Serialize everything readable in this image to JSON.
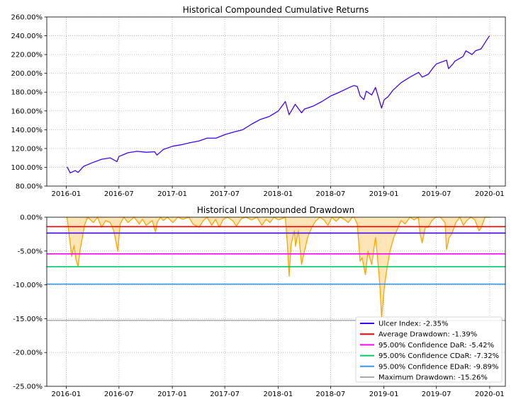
{
  "chart_data": [
    {
      "type": "line",
      "title": "Historical Compounded Cumulative Returns",
      "xlabel": "",
      "ylabel": "",
      "x_ticks": [
        "2016-01",
        "2016-07",
        "2017-01",
        "2017-07",
        "2018-01",
        "2018-07",
        "2019-01",
        "2019-07",
        "2020-01"
      ],
      "y_ticks": [
        "80.00%",
        "100.00%",
        "120.00%",
        "140.00%",
        "160.00%",
        "180.00%",
        "200.00%",
        "220.00%",
        "240.00%",
        "260.00%"
      ],
      "ylim": [
        80,
        260
      ],
      "xlim": [
        "2015-10-26",
        "2020-02-24"
      ],
      "grid": true,
      "series": [
        {
          "color": "#4400ff",
          "x": [
            "2016-01-04",
            "2016-01-15",
            "2016-02-01",
            "2016-02-11",
            "2016-03-01",
            "2016-04-01",
            "2016-05-02",
            "2016-06-01",
            "2016-06-24",
            "2016-07-01",
            "2016-08-01",
            "2016-09-01",
            "2016-10-03",
            "2016-11-01",
            "2016-11-09",
            "2016-12-01",
            "2017-01-03",
            "2017-02-01",
            "2017-03-01",
            "2017-04-03",
            "2017-05-01",
            "2017-06-01",
            "2017-07-03",
            "2017-08-01",
            "2017-09-01",
            "2017-10-02",
            "2017-11-01",
            "2017-12-01",
            "2018-01-02",
            "2018-01-26",
            "2018-02-08",
            "2018-03-01",
            "2018-03-23",
            "2018-04-02",
            "2018-05-01",
            "2018-06-01",
            "2018-07-02",
            "2018-08-01",
            "2018-09-04",
            "2018-09-20",
            "2018-10-01",
            "2018-10-11",
            "2018-10-24",
            "2018-11-01",
            "2018-11-20",
            "2018-12-03",
            "2018-12-24",
            "2019-01-02",
            "2019-01-15",
            "2019-02-01",
            "2019-03-01",
            "2019-04-01",
            "2019-05-01",
            "2019-05-13",
            "2019-06-03",
            "2019-06-20",
            "2019-07-01",
            "2019-08-05",
            "2019-08-12",
            "2019-08-27",
            "2019-09-03",
            "2019-10-01",
            "2019-10-11",
            "2019-11-01",
            "2019-11-13",
            "2019-12-02",
            "2019-12-31"
          ],
          "values": [
            100.5,
            94.0,
            96.5,
            94.5,
            101.0,
            105.0,
            108.5,
            110.0,
            106.0,
            111.5,
            115.5,
            117.0,
            116.0,
            116.5,
            113.0,
            119.0,
            122.5,
            124.0,
            126.0,
            128.0,
            131.0,
            131.0,
            135.0,
            137.5,
            140.0,
            146.0,
            151.0,
            154.0,
            160.0,
            170.0,
            156.0,
            167.0,
            158.0,
            162.0,
            165.0,
            170.0,
            176.0,
            180.0,
            185.0,
            187.0,
            186.0,
            176.0,
            172.0,
            181.0,
            177.0,
            185.0,
            163.0,
            172.0,
            175.0,
            182.0,
            190.0,
            196.0,
            201.0,
            196.0,
            199.0,
            206.0,
            210.0,
            214.0,
            205.0,
            210.0,
            213.0,
            218.0,
            224.0,
            220.0,
            224.0,
            226.0,
            240.0
          ]
        }
      ]
    },
    {
      "type": "area",
      "title": "Historical Uncompounded Drawdown",
      "xlabel": "",
      "ylabel": "",
      "x_ticks": [
        "2016-01",
        "2016-07",
        "2017-01",
        "2017-07",
        "2018-01",
        "2018-07",
        "2019-01",
        "2019-07",
        "2020-01"
      ],
      "y_ticks": [
        "0.00%",
        "-5.00%",
        "-10.00%",
        "-15.00%",
        "-20.00%",
        "-25.00%"
      ],
      "ylim": [
        -25,
        0
      ],
      "xlim": [
        "2015-10-26",
        "2020-02-24"
      ],
      "grid": true,
      "legend_placement": "lower-right",
      "series": [
        {
          "color": "#ffa500",
          "fill": "#ffe4b5",
          "x": [
            "2016-01-04",
            "2016-01-08",
            "2016-01-20",
            "2016-01-28",
            "2016-02-04",
            "2016-02-11",
            "2016-02-18",
            "2016-02-25",
            "2016-03-04",
            "2016-03-15",
            "2016-04-04",
            "2016-04-18",
            "2016-05-02",
            "2016-05-16",
            "2016-06-01",
            "2016-06-13",
            "2016-06-27",
            "2016-07-05",
            "2016-07-18",
            "2016-08-01",
            "2016-08-22",
            "2016-09-09",
            "2016-09-20",
            "2016-10-03",
            "2016-10-24",
            "2016-11-04",
            "2016-11-10",
            "2016-11-21",
            "2016-12-01",
            "2016-12-15",
            "2017-01-03",
            "2017-01-20",
            "2017-02-06",
            "2017-02-27",
            "2017-03-13",
            "2017-04-03",
            "2017-04-18",
            "2017-05-01",
            "2017-05-17",
            "2017-05-30",
            "2017-06-12",
            "2017-06-26",
            "2017-07-10",
            "2017-07-28",
            "2017-08-10",
            "2017-08-28",
            "2017-09-12",
            "2017-10-02",
            "2017-10-20",
            "2017-11-06",
            "2017-11-21",
            "2017-12-04",
            "2017-12-18",
            "2018-01-02",
            "2018-01-26",
            "2018-02-02",
            "2018-02-08",
            "2018-02-15",
            "2018-02-26",
            "2018-03-02",
            "2018-03-12",
            "2018-03-23",
            "2018-04-02",
            "2018-04-13",
            "2018-04-27",
            "2018-05-10",
            "2018-05-25",
            "2018-06-08",
            "2018-06-22",
            "2018-07-06",
            "2018-07-20",
            "2018-08-03",
            "2018-08-17",
            "2018-08-31",
            "2018-09-14",
            "2018-09-20",
            "2018-10-01",
            "2018-10-11",
            "2018-10-18",
            "2018-10-29",
            "2018-11-07",
            "2018-11-20",
            "2018-12-03",
            "2018-12-10",
            "2018-12-18",
            "2018-12-24",
            "2019-01-02",
            "2019-01-10",
            "2019-01-22",
            "2019-02-04",
            "2019-02-19",
            "2019-03-01",
            "2019-03-15",
            "2019-04-01",
            "2019-04-15",
            "2019-04-30",
            "2019-05-06",
            "2019-05-13",
            "2019-05-24",
            "2019-06-03",
            "2019-06-14",
            "2019-06-28",
            "2019-07-15",
            "2019-07-31",
            "2019-08-05",
            "2019-08-14",
            "2019-08-23",
            "2019-09-06",
            "2019-09-20",
            "2019-10-02",
            "2019-10-14",
            "2019-10-28",
            "2019-11-11",
            "2019-11-25",
            "2019-12-03",
            "2019-12-16",
            "2019-12-31"
          ],
          "values": [
            0,
            -1.5,
            -5.8,
            -4.2,
            -6.3,
            -7.3,
            -4.8,
            -3.2,
            -1.2,
            0,
            -0.8,
            0,
            -1.5,
            -0.5,
            -0.8,
            -2.0,
            -5.0,
            -1.0,
            0,
            -0.8,
            0,
            -1.0,
            -0.3,
            -1.2,
            -0.5,
            -2.2,
            -0.8,
            0,
            -0.5,
            0,
            -0.8,
            0,
            -0.3,
            0,
            -1.0,
            -1.5,
            -0.5,
            0,
            -1.2,
            -0.3,
            -1.5,
            -0.3,
            0,
            -0.5,
            -1.3,
            -0.2,
            0,
            -0.4,
            0,
            -1.2,
            -0.3,
            -0.8,
            0,
            -0.4,
            0,
            -4.0,
            -8.7,
            -4.0,
            -2.0,
            -4.3,
            -2.0,
            -7.0,
            -5.0,
            -3.0,
            -1.5,
            -0.6,
            0,
            -0.4,
            -1.2,
            0,
            -0.6,
            0,
            -0.3,
            -0.8,
            0,
            0,
            -1.0,
            -6.5,
            -6.0,
            -8.5,
            -5.0,
            -7.0,
            -3.0,
            -6.0,
            -10.0,
            -14.8,
            -10.5,
            -8.0,
            -5.0,
            -3.0,
            -1.5,
            -0.5,
            -1.0,
            0,
            -0.4,
            0,
            -2.5,
            -3.8,
            -1.5,
            -1.5,
            -0.6,
            0,
            0,
            -0.8,
            -4.8,
            -3.0,
            -2.5,
            -0.8,
            0,
            -1.2,
            -0.5,
            0,
            -0.4,
            -2.0,
            -1.5,
            0,
            0
          ]
        }
      ],
      "lines": [
        {
          "label": "Ulcer Index: -2.35%",
          "value": -2.35,
          "color": "#4400ff"
        },
        {
          "label": "Average Drawdown: -1.39%",
          "value": -1.39,
          "color": "#ff0000"
        },
        {
          "label": "95.00% Confidence DaR: -5.42%",
          "value": -5.42,
          "color": "#ff00ff"
        },
        {
          "label": "95.00% Confidence CDaR: -7.32%",
          "value": -7.32,
          "color": "#00cc66"
        },
        {
          "label": "95.00% Confidence EDaR: -9.89%",
          "value": -9.89,
          "color": "#3399ff"
        },
        {
          "label": "Maximum Drawdown: -15.26%",
          "value": -15.26,
          "color": "#aaaaaa"
        }
      ]
    }
  ]
}
